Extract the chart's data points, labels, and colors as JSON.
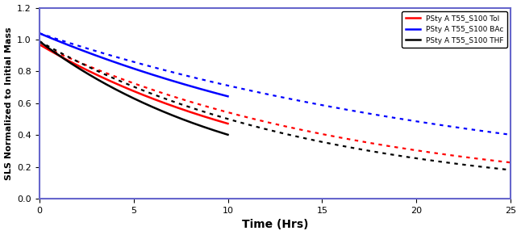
{
  "title": "",
  "xlabel": "Time (Hrs)",
  "ylabel": "SLS Normalized to Initial Mass",
  "xlim": [
    0,
    25
  ],
  "ylim": [
    0,
    1.2
  ],
  "xticks": [
    0,
    5,
    10,
    15,
    20,
    25
  ],
  "yticks": [
    0,
    0.2,
    0.4,
    0.6,
    0.8,
    1.0,
    1.2
  ],
  "legend_labels": [
    "PSty A T55_S100 Tol",
    "PSty A T55_S100 BAc",
    "PSty A T55_S100 THF"
  ],
  "background_color": "white",
  "border_color": "#6666cc",
  "curves": [
    {
      "name": "Tol",
      "color": "red",
      "A": 0.97,
      "k": 0.072,
      "solid_end": 10.0,
      "dot_A": 0.97,
      "dot_k": 0.058
    },
    {
      "name": "BAc",
      "color": "blue",
      "A": 1.04,
      "k": 0.048,
      "solid_end": 10.0,
      "dot_A": 1.04,
      "dot_k": 0.038
    },
    {
      "name": "THF",
      "color": "black",
      "A": 0.99,
      "k": 0.09,
      "solid_end": 10.0,
      "dot_A": 0.99,
      "dot_k": 0.068
    }
  ]
}
